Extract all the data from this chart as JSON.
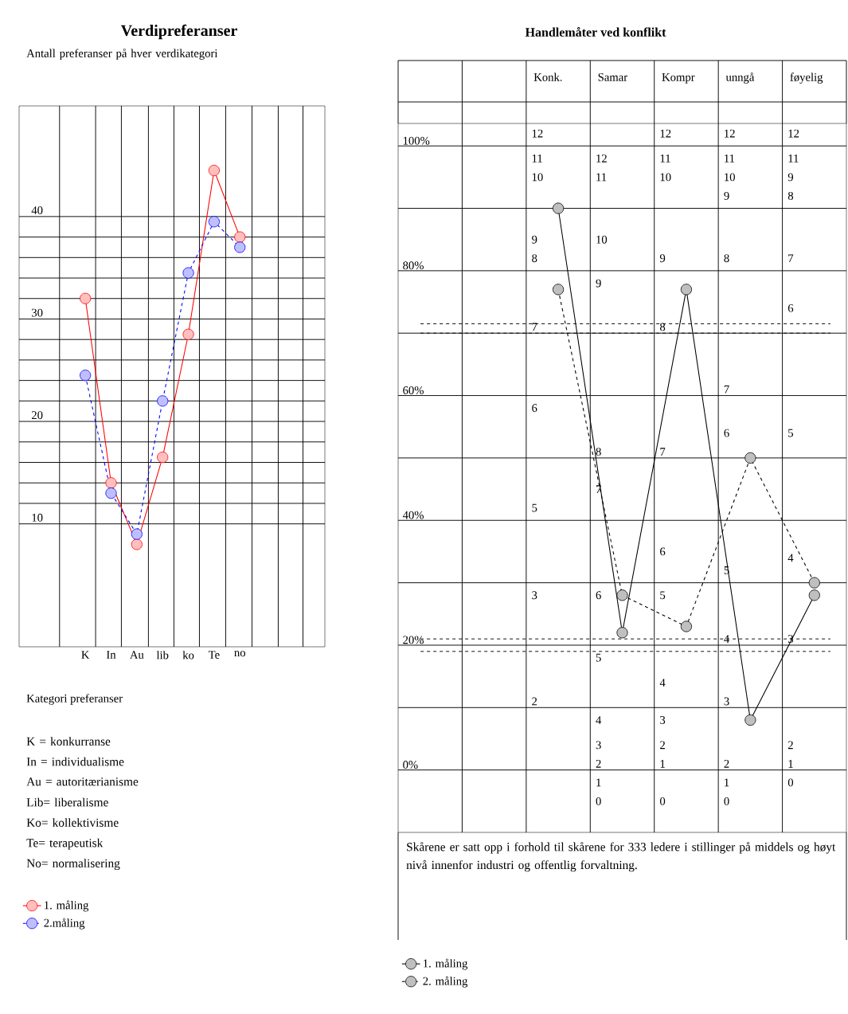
{
  "chart_data": [
    {
      "type": "line",
      "title": "Verdipreferanser",
      "ylabel": "Antall preferanser på hver  verdikategori",
      "xlabel": "Kategori preferanser",
      "categories": [
        "K",
        "In",
        "Au",
        "lib",
        "ko",
        "Te",
        "no"
      ],
      "ylim": [
        -2,
        50.8
      ],
      "yticks": [
        10,
        20,
        30,
        40
      ],
      "grid": true,
      "legend": "bottom",
      "marker": "circle",
      "series": [
        {
          "name": "1. måling",
          "color": "#ff0000",
          "line_style": "solid",
          "values": [
            32,
            14,
            8,
            16.5,
            28.5,
            44.5,
            38
          ]
        },
        {
          "name": "2.måling",
          "color": "#0000ff",
          "line_style": "dashed",
          "values": [
            24.5,
            13,
            9,
            22,
            34.5,
            39.5,
            37
          ]
        }
      ],
      "annotations": [
        "K =  konkurranse",
        "In = individualisme",
        "Au = autoritærianisme",
        "Lib= liberalisme",
        "Ko= kollektivisme",
        "Te= terapeutisk",
        "No= normalisering"
      ]
    },
    {
      "type": "line",
      "title": "Handlemåter ved konflikt",
      "categories": [
        "Konk.",
        "Samar",
        "Kompr",
        "unngå",
        "føyelig"
      ],
      "ylim": [
        -10,
        103.6
      ],
      "yticks": [
        {
          "value": 0,
          "label": "0%"
        },
        {
          "value": 10,
          "label": null
        },
        {
          "value": 20,
          "label": "20%"
        },
        {
          "value": 30,
          "label": null
        },
        {
          "value": 40,
          "label": "40%"
        },
        {
          "value": 50,
          "label": null
        },
        {
          "value": 60,
          "label": "60%"
        },
        {
          "value": 70,
          "label": null
        },
        {
          "value": 80,
          "label": "80%"
        },
        {
          "value": 90,
          "label": null
        },
        {
          "value": 100,
          "label": "100%"
        }
      ],
      "grid": true,
      "legend": "bottom",
      "marker": "circle",
      "series": [
        {
          "name": "1. måling",
          "color": "#000000",
          "line_style": "solid",
          "values": [
            90,
            22,
            77,
            8,
            28
          ]
        },
        {
          "name": "2. måling",
          "color": "#000000",
          "line_style": "dashed",
          "values": [
            77,
            28,
            23,
            50,
            30
          ]
        }
      ],
      "ref_lines": [
        {
          "axis": "y",
          "value": 71.5,
          "color": "#000000",
          "line_style": "dashed"
        },
        {
          "axis": "y",
          "value": 70,
          "color": "#000000",
          "line_style": "dashed"
        },
        {
          "axis": "y",
          "value": 21,
          "color": "#000000",
          "line_style": "dashed"
        },
        {
          "axis": "y",
          "value": 19,
          "color": "#000000",
          "line_style": "dashed"
        }
      ],
      "annotations": [
        "12",
        "11",
        "10",
        "9",
        "8",
        "7",
        "6",
        "5",
        "3",
        "2",
        "12",
        "11",
        "10",
        "9",
        "8",
        "7",
        "6",
        "5",
        "4",
        "3",
        "2",
        "1",
        "0",
        "12",
        "11",
        "10",
        "9",
        "8",
        "7",
        "6",
        "5",
        "4",
        "3",
        "2",
        "1",
        "0",
        "12",
        "11",
        "10",
        "9",
        "8",
        "7",
        "6",
        "5",
        "4",
        "3",
        "2",
        "1",
        "0",
        "12",
        "11",
        "9",
        "8",
        "7",
        "6",
        "5",
        "4",
        "3",
        "2",
        "1",
        "0",
        "Skårene er satt opp i forhold til skårene  for 333 ledere i stillinger på middels og høyt  nivå innenfor industri og offentlig forvaltning."
      ]
    }
  ]
}
